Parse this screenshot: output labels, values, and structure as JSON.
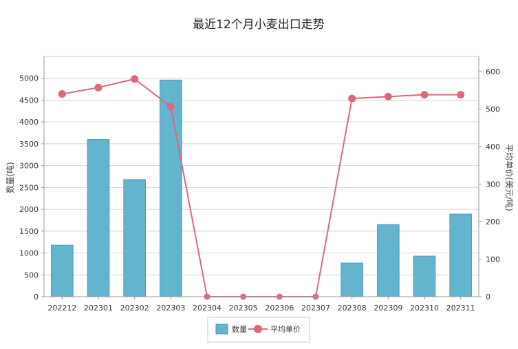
{
  "chart_data": {
    "type": "bar",
    "title": "最近12个月小麦出口走势",
    "categories": [
      "202212",
      "202301",
      "202302",
      "202303",
      "202304",
      "202305",
      "202306",
      "202307",
      "202308",
      "202309",
      "202310",
      "202311"
    ],
    "ylabel": "数量(吨)",
    "y2label": "平均单价(美元/吨)",
    "ylim": [
      0,
      5500
    ],
    "y2lim": [
      0,
      640
    ],
    "yticks": [
      0,
      500,
      1000,
      1500,
      2000,
      2500,
      3000,
      3500,
      4000,
      4500,
      5000
    ],
    "y2ticks": [
      0,
      100,
      200,
      300,
      400,
      500,
      600
    ],
    "grid": true,
    "legend_position": "bottom",
    "series": [
      {
        "name": "数量",
        "type": "bar",
        "axis": "left",
        "color": "#62b4cf",
        "values": [
          1180,
          3600,
          2680,
          4960,
          0,
          0,
          0,
          0,
          770,
          1650,
          930,
          1890
        ]
      },
      {
        "name": "平均单价",
        "type": "line",
        "axis": "right",
        "color": "#e0667a",
        "values": [
          540,
          557,
          580,
          506,
          0,
          0,
          0,
          0,
          528,
          533,
          538,
          538
        ]
      }
    ]
  }
}
